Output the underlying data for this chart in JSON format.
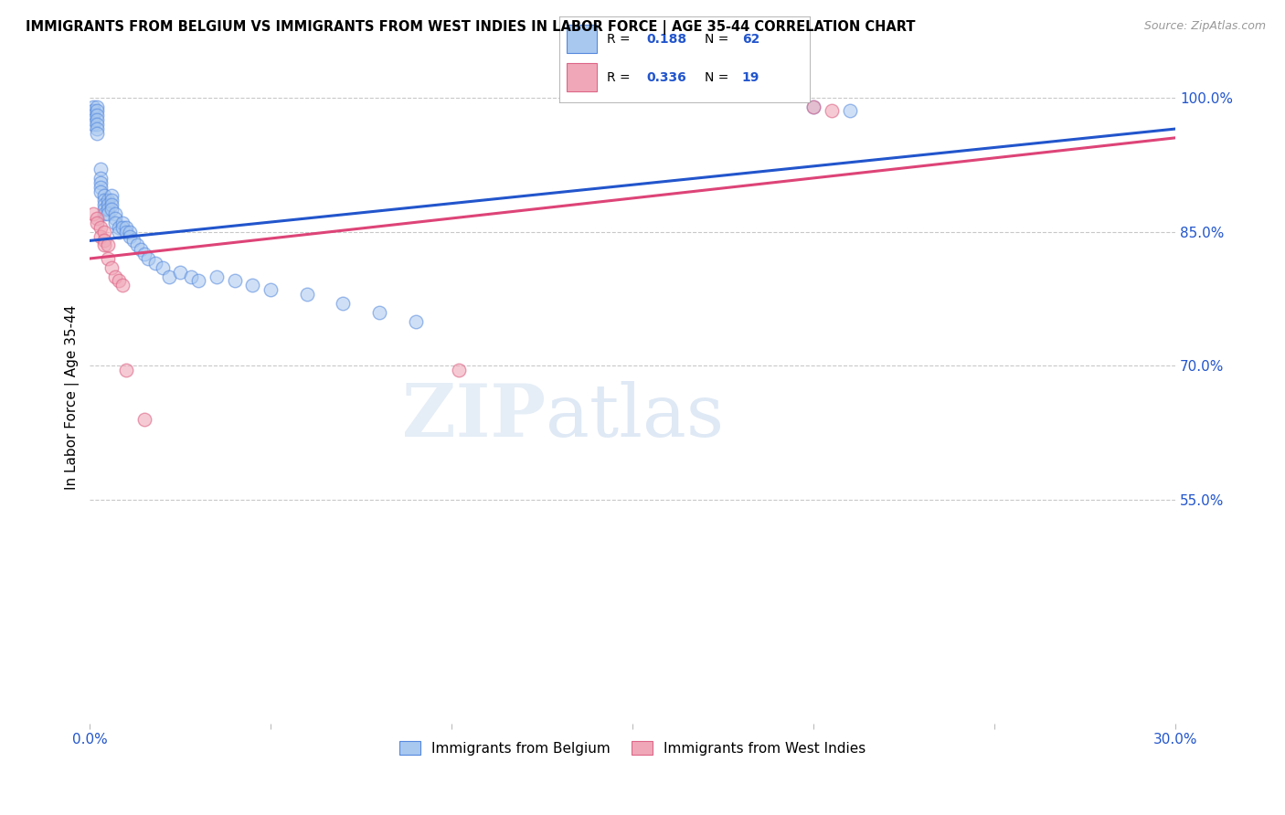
{
  "title": "IMMIGRANTS FROM BELGIUM VS IMMIGRANTS FROM WEST INDIES IN LABOR FORCE | AGE 35-44 CORRELATION CHART",
  "source": "Source: ZipAtlas.com",
  "ylabel": "In Labor Force | Age 35-44",
  "xlim": [
    0.0,
    0.3
  ],
  "ylim": [
    0.3,
    1.03
  ],
  "xticks": [
    0.0,
    0.05,
    0.1,
    0.15,
    0.2,
    0.25,
    0.3
  ],
  "xticklabels": [
    "0.0%",
    "",
    "",
    "",
    "",
    "",
    "30.0%"
  ],
  "yticks_right": [
    0.55,
    0.7,
    0.85,
    1.0
  ],
  "ytick_labels_right": [
    "55.0%",
    "70.0%",
    "85.0%",
    "100.0%"
  ],
  "legend_r_blue": "0.188",
  "legend_n_blue": "62",
  "legend_r_pink": "0.336",
  "legend_n_pink": "19",
  "legend_label_blue": "Immigrants from Belgium",
  "legend_label_pink": "Immigrants from West Indies",
  "blue_color": "#a8c8f0",
  "pink_color": "#f0a8b8",
  "blue_line_color": "#2255cc",
  "pink_line_color": "#dd4477",
  "blue_scatter_edge": "#5588dd",
  "pink_scatter_edge": "#dd6688",
  "watermark_zip": "ZIP",
  "watermark_atlas": "atlas",
  "background_color": "#ffffff",
  "grid_color": "#bbbbbb",
  "grid_style": "--",
  "blue_x": [
    0.001,
    0.001,
    0.001,
    0.001,
    0.001,
    0.002,
    0.002,
    0.002,
    0.002,
    0.002,
    0.002,
    0.002,
    0.003,
    0.003,
    0.003,
    0.003,
    0.003,
    0.004,
    0.004,
    0.004,
    0.004,
    0.004,
    0.005,
    0.005,
    0.005,
    0.005,
    0.006,
    0.006,
    0.006,
    0.006,
    0.007,
    0.007,
    0.007,
    0.008,
    0.008,
    0.009,
    0.009,
    0.01,
    0.01,
    0.011,
    0.011,
    0.012,
    0.013,
    0.014,
    0.015,
    0.016,
    0.018,
    0.02,
    0.022,
    0.025,
    0.028,
    0.03,
    0.035,
    0.04,
    0.045,
    0.05,
    0.06,
    0.07,
    0.08,
    0.09,
    0.2,
    0.21
  ],
  "blue_y": [
    0.99,
    0.985,
    0.98,
    0.975,
    0.97,
    0.99,
    0.985,
    0.98,
    0.975,
    0.97,
    0.965,
    0.96,
    0.92,
    0.91,
    0.905,
    0.9,
    0.895,
    0.89,
    0.885,
    0.88,
    0.875,
    0.87,
    0.885,
    0.88,
    0.875,
    0.87,
    0.89,
    0.885,
    0.88,
    0.875,
    0.87,
    0.865,
    0.86,
    0.855,
    0.85,
    0.86,
    0.855,
    0.855,
    0.85,
    0.85,
    0.845,
    0.84,
    0.835,
    0.83,
    0.825,
    0.82,
    0.815,
    0.81,
    0.8,
    0.805,
    0.8,
    0.795,
    0.8,
    0.795,
    0.79,
    0.785,
    0.78,
    0.77,
    0.76,
    0.75,
    0.99,
    0.985
  ],
  "pink_x": [
    0.001,
    0.002,
    0.002,
    0.003,
    0.003,
    0.004,
    0.004,
    0.004,
    0.005,
    0.005,
    0.006,
    0.007,
    0.008,
    0.009,
    0.01,
    0.015,
    0.102,
    0.2,
    0.205
  ],
  "pink_y": [
    0.87,
    0.865,
    0.86,
    0.855,
    0.845,
    0.85,
    0.84,
    0.835,
    0.835,
    0.82,
    0.81,
    0.8,
    0.795,
    0.79,
    0.695,
    0.64,
    0.695,
    0.99,
    0.985
  ],
  "blue_line_x0": 0.0,
  "blue_line_x1": 0.3,
  "blue_line_y0": 0.84,
  "blue_line_y1": 0.965,
  "pink_line_x0": 0.0,
  "pink_line_x1": 0.3,
  "pink_line_y0": 0.82,
  "pink_line_y1": 0.955
}
